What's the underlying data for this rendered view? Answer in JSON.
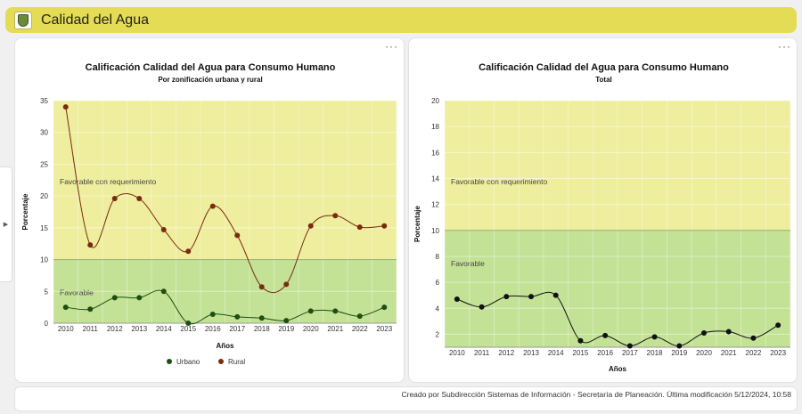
{
  "app": {
    "title": "Calidad del Agua"
  },
  "footer": {
    "text": "Creado por Subdirección Sistemas de Información - Secretaría de Planeación. Última modificación 5/12/2024, 10:58"
  },
  "menu": {
    "more": "···"
  },
  "chart_data": [
    {
      "type": "line",
      "title": "Calificación Calidad del Agua para Consumo Humano",
      "subtitle": "Por zonificación urbana y rural",
      "xlabel": "Años",
      "ylabel": "Porcentaje",
      "ylim": [
        0,
        35
      ],
      "yticks": [
        0,
        5,
        10,
        15,
        20,
        25,
        30,
        35
      ],
      "categories": [
        "2010",
        "2011",
        "2012",
        "2013",
        "2014",
        "2015",
        "2016",
        "2017",
        "2018",
        "2019",
        "2020",
        "2021",
        "2022",
        "2023"
      ],
      "bands": [
        {
          "label": "Favorable",
          "from": 0,
          "to": 10,
          "color": "#c3e296"
        },
        {
          "label": "Favorable con requerimiento",
          "from": 10,
          "to": 35,
          "color": "#eeee9e"
        }
      ],
      "series": [
        {
          "name": "Urbano",
          "color": "#1f4d12",
          "values": [
            2.5,
            2.2,
            4.0,
            4.0,
            5.0,
            0.0,
            1.4,
            1.0,
            0.8,
            0.4,
            1.9,
            1.9,
            1.1,
            2.5
          ]
        },
        {
          "name": "Rural",
          "color": "#7a2a10",
          "values": [
            34.0,
            12.3,
            19.6,
            19.6,
            14.7,
            11.3,
            18.4,
            13.8,
            5.7,
            6.1,
            15.3,
            16.9,
            15.1,
            15.3
          ]
        }
      ],
      "legend": "bottom",
      "grid": true
    },
    {
      "type": "line",
      "title": "Calificación Calidad del Agua para Consumo Humano",
      "subtitle": "Total",
      "xlabel": "Años",
      "ylabel": "Porcentaje",
      "ylim": [
        1,
        20
      ],
      "yticks": [
        2,
        4,
        6,
        8,
        10,
        12,
        14,
        16,
        18,
        20
      ],
      "categories": [
        "2010",
        "2011",
        "2012",
        "2013",
        "2014",
        "2015",
        "2016",
        "2017",
        "2018",
        "2019",
        "2020",
        "2021",
        "2022",
        "2023"
      ],
      "bands": [
        {
          "label": "Favorable",
          "from": 1,
          "to": 10,
          "color": "#c3e296"
        },
        {
          "label": "Favorable con requerimiento",
          "from": 10,
          "to": 20,
          "color": "#eeee9e"
        }
      ],
      "series": [
        {
          "name": "",
          "color": "#111111",
          "values": [
            4.7,
            4.1,
            4.9,
            4.9,
            5.0,
            1.5,
            1.9,
            1.1,
            1.8,
            1.1,
            2.1,
            2.2,
            1.7,
            2.7
          ]
        }
      ],
      "grid": true
    }
  ]
}
